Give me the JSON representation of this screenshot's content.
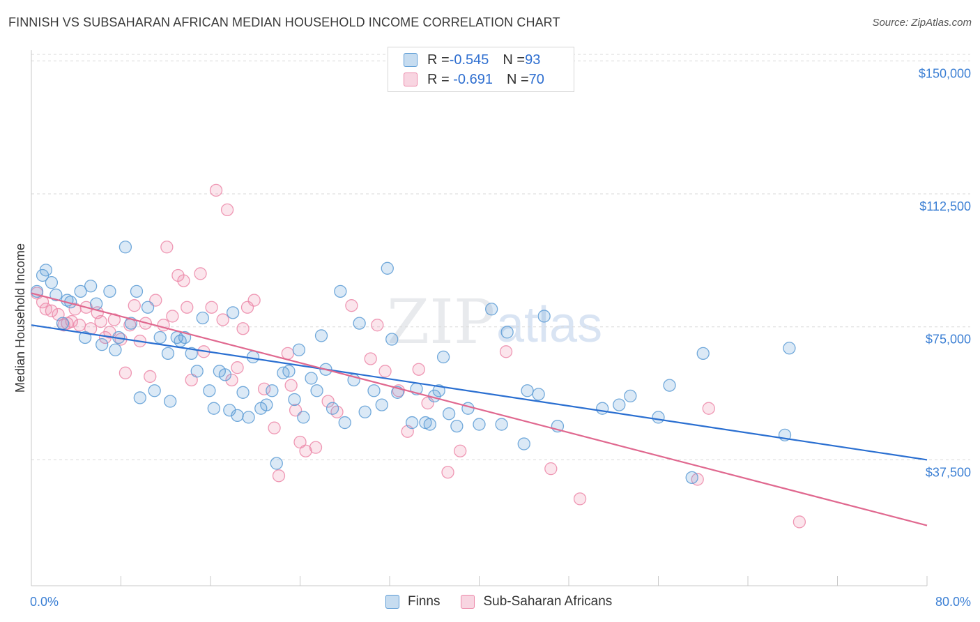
{
  "title": "FINNISH VS SUBSAHARAN AFRICAN MEDIAN HOUSEHOLD INCOME CORRELATION CHART",
  "source": "Source: ZipAtlas.com",
  "watermark": {
    "zip": "ZIP",
    "atlas": "atlas"
  },
  "legend": {
    "rows": [
      {
        "r_label": "R = ",
        "r_value": "-0.545",
        "n_label": "N = ",
        "n_value": "93",
        "color": "#5b9bd5"
      },
      {
        "r_label": "R = ",
        "r_value": " -0.691",
        "n_label": "N = ",
        "n_value": "70",
        "color": "#ec87a8"
      }
    ]
  },
  "bottom_legend": [
    {
      "label": "Finns",
      "color": "#5b9bd5"
    },
    {
      "label": "Sub-Saharan Africans",
      "color": "#ec87a8"
    }
  ],
  "chart_data": {
    "type": "scatter",
    "xlabel": "",
    "ylabel": "Median Household Income",
    "x_tick_labels": {
      "min": "0.0%",
      "max": "80.0%"
    },
    "y_tick_labels": [
      "$37,500",
      "$75,000",
      "$112,500",
      "$150,000"
    ],
    "xlim": [
      0,
      80
    ],
    "ylim": [
      2000,
      153000
    ],
    "grid": true,
    "series": [
      {
        "name": "Finns",
        "color": "#5b9bd5",
        "trend": {
          "x": [
            0,
            80
          ],
          "y": [
            75500,
            37500
          ]
        },
        "points": [
          [
            0.5,
            85000
          ],
          [
            1.0,
            89500
          ],
          [
            1.3,
            91000
          ],
          [
            1.8,
            87500
          ],
          [
            2.2,
            84000
          ],
          [
            2.8,
            76000
          ],
          [
            3.2,
            82500
          ],
          [
            3.5,
            82000
          ],
          [
            4.4,
            85000
          ],
          [
            4.8,
            72000
          ],
          [
            5.3,
            86500
          ],
          [
            5.8,
            81500
          ],
          [
            6.3,
            70000
          ],
          [
            7.0,
            85000
          ],
          [
            7.5,
            68500
          ],
          [
            7.8,
            72000
          ],
          [
            8.4,
            97500
          ],
          [
            8.9,
            76000
          ],
          [
            9.4,
            85000
          ],
          [
            9.7,
            55000
          ],
          [
            10.4,
            80500
          ],
          [
            11.0,
            57000
          ],
          [
            11.5,
            72000
          ],
          [
            12.2,
            67500
          ],
          [
            12.4,
            54000
          ],
          [
            13.0,
            72000
          ],
          [
            13.3,
            71000
          ],
          [
            13.7,
            72000
          ],
          [
            14.3,
            67500
          ],
          [
            14.8,
            62500
          ],
          [
            15.3,
            77500
          ],
          [
            15.9,
            57000
          ],
          [
            16.3,
            52000
          ],
          [
            16.8,
            62500
          ],
          [
            17.3,
            61500
          ],
          [
            17.7,
            51500
          ],
          [
            18.0,
            79000
          ],
          [
            18.4,
            50000
          ],
          [
            18.9,
            56500
          ],
          [
            19.4,
            49500
          ],
          [
            19.8,
            66500
          ],
          [
            20.5,
            52000
          ],
          [
            21.0,
            53000
          ],
          [
            21.5,
            57000
          ],
          [
            21.9,
            36500
          ],
          [
            22.5,
            62000
          ],
          [
            23.0,
            62500
          ],
          [
            23.5,
            54500
          ],
          [
            23.9,
            68500
          ],
          [
            24.3,
            49500
          ],
          [
            25.0,
            60500
          ],
          [
            25.5,
            57000
          ],
          [
            25.9,
            72500
          ],
          [
            26.3,
            63000
          ],
          [
            26.9,
            52000
          ],
          [
            27.6,
            85000
          ],
          [
            28.0,
            48000
          ],
          [
            28.8,
            60000
          ],
          [
            29.3,
            76000
          ],
          [
            29.8,
            51000
          ],
          [
            30.6,
            57000
          ],
          [
            31.3,
            53000
          ],
          [
            31.8,
            91500
          ],
          [
            32.2,
            71500
          ],
          [
            32.7,
            56500
          ],
          [
            34.0,
            48000
          ],
          [
            34.4,
            57500
          ],
          [
            35.2,
            48000
          ],
          [
            35.6,
            47500
          ],
          [
            36.0,
            55500
          ],
          [
            36.4,
            57000
          ],
          [
            36.8,
            66500
          ],
          [
            37.3,
            50500
          ],
          [
            38.0,
            47000
          ],
          [
            39.0,
            52000
          ],
          [
            40.0,
            47500
          ],
          [
            41.1,
            80000
          ],
          [
            42.0,
            47500
          ],
          [
            42.5,
            73500
          ],
          [
            44.0,
            42000
          ],
          [
            44.3,
            57000
          ],
          [
            45.3,
            56000
          ],
          [
            45.8,
            78000
          ],
          [
            47.0,
            47000
          ],
          [
            51.0,
            52000
          ],
          [
            52.5,
            53000
          ],
          [
            53.5,
            55500
          ],
          [
            56.0,
            49500
          ],
          [
            57.0,
            58500
          ],
          [
            59.0,
            32500
          ],
          [
            60.0,
            67500
          ],
          [
            67.3,
            44500
          ],
          [
            67.7,
            69000
          ]
        ]
      },
      {
        "name": "Sub-Saharan Africans",
        "color": "#ec87a8",
        "trend": {
          "x": [
            0,
            80
          ],
          "y": [
            84500,
            19000
          ]
        },
        "points": [
          [
            0.5,
            84500
          ],
          [
            1.0,
            82000
          ],
          [
            1.3,
            80000
          ],
          [
            1.8,
            79500
          ],
          [
            2.4,
            78500
          ],
          [
            2.9,
            75500
          ],
          [
            3.2,
            76000
          ],
          [
            3.6,
            76500
          ],
          [
            3.9,
            80000
          ],
          [
            4.3,
            75500
          ],
          [
            4.9,
            80500
          ],
          [
            5.3,
            74500
          ],
          [
            5.9,
            79000
          ],
          [
            6.2,
            76500
          ],
          [
            6.6,
            72000
          ],
          [
            7.0,
            73500
          ],
          [
            7.4,
            77000
          ],
          [
            8.0,
            71500
          ],
          [
            8.4,
            62000
          ],
          [
            8.8,
            75500
          ],
          [
            9.2,
            81000
          ],
          [
            9.7,
            71000
          ],
          [
            10.2,
            76000
          ],
          [
            10.6,
            61000
          ],
          [
            11.1,
            82500
          ],
          [
            11.8,
            75500
          ],
          [
            12.1,
            97500
          ],
          [
            12.6,
            78000
          ],
          [
            13.1,
            89500
          ],
          [
            13.6,
            88000
          ],
          [
            13.9,
            80500
          ],
          [
            14.3,
            60000
          ],
          [
            15.1,
            90000
          ],
          [
            15.4,
            68000
          ],
          [
            16.1,
            80500
          ],
          [
            16.5,
            113500
          ],
          [
            17.1,
            77000
          ],
          [
            17.5,
            108000
          ],
          [
            17.9,
            60000
          ],
          [
            18.4,
            63500
          ],
          [
            18.9,
            74500
          ],
          [
            19.3,
            80500
          ],
          [
            19.9,
            82500
          ],
          [
            20.8,
            57500
          ],
          [
            21.7,
            46500
          ],
          [
            22.1,
            33000
          ],
          [
            22.9,
            67500
          ],
          [
            23.2,
            58500
          ],
          [
            23.6,
            51500
          ],
          [
            24.0,
            42500
          ],
          [
            24.5,
            40000
          ],
          [
            25.4,
            41000
          ],
          [
            26.5,
            54000
          ],
          [
            27.3,
            51000
          ],
          [
            28.6,
            81000
          ],
          [
            30.3,
            66000
          ],
          [
            30.9,
            75500
          ],
          [
            31.6,
            62500
          ],
          [
            32.8,
            57000
          ],
          [
            33.6,
            45500
          ],
          [
            34.6,
            63000
          ],
          [
            35.4,
            53500
          ],
          [
            37.2,
            34000
          ],
          [
            38.3,
            40000
          ],
          [
            42.4,
            68000
          ],
          [
            46.4,
            35000
          ],
          [
            49.0,
            26500
          ],
          [
            59.5,
            32000
          ],
          [
            60.5,
            52000
          ],
          [
            68.6,
            20000
          ]
        ]
      }
    ]
  }
}
